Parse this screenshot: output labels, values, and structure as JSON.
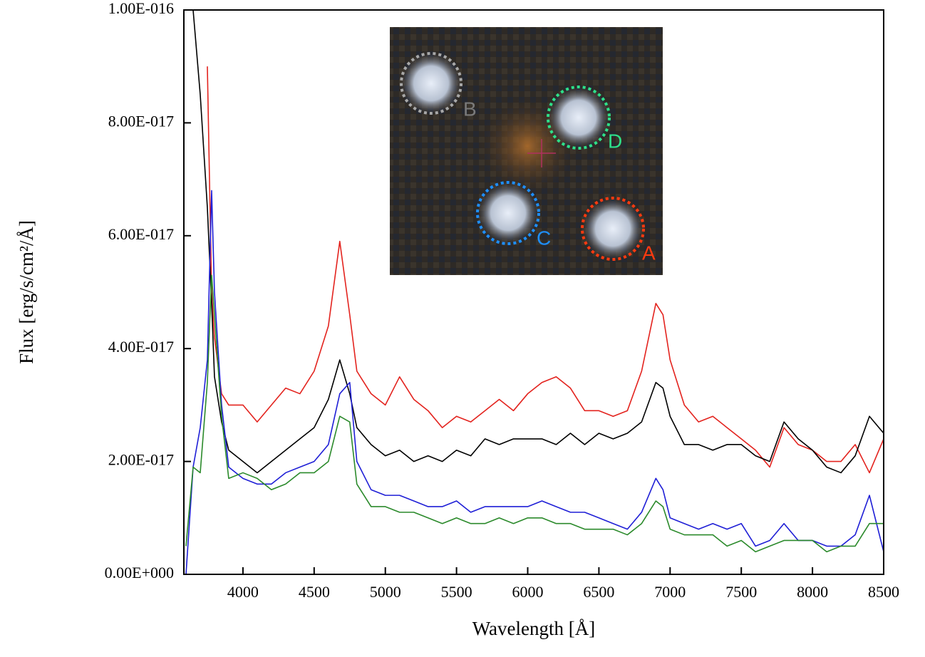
{
  "chart_data": {
    "type": "line",
    "xlabel": "Wavelength [Å]",
    "ylabel": "Flux [erg/s/cm²/Å]",
    "xlim": [
      3585,
      8500
    ],
    "ylim": [
      0,
      1e-16
    ],
    "xticks": [
      4000,
      4500,
      5000,
      5500,
      6000,
      6500,
      7000,
      7500,
      8000,
      8500
    ],
    "yticks": [
      {
        "value": 0,
        "label": "0.00E+000"
      },
      {
        "value": 2e-17,
        "label": "2.00E-017"
      },
      {
        "value": 4e-17,
        "label": "4.00E-017"
      },
      {
        "value": 6e-17,
        "label": "6.00E-017"
      },
      {
        "value": 8e-17,
        "label": "8.00E-017"
      },
      {
        "value": 1e-16,
        "label": "1.00E-016"
      }
    ],
    "x": [
      3600,
      3650,
      3700,
      3750,
      3780,
      3800,
      3850,
      3900,
      4000,
      4100,
      4200,
      4300,
      4400,
      4500,
      4600,
      4680,
      4750,
      4800,
      4900,
      5000,
      5100,
      5200,
      5300,
      5400,
      5500,
      5600,
      5700,
      5800,
      5900,
      6000,
      6100,
      6200,
      6300,
      6400,
      6500,
      6600,
      6700,
      6800,
      6900,
      6950,
      7000,
      7100,
      7200,
      7300,
      7400,
      7500,
      7600,
      7700,
      7800,
      7900,
      8000,
      8100,
      8200,
      8300,
      8400,
      8500
    ],
    "series": [
      {
        "name": "A",
        "color": "#e3231e",
        "values": [
          null,
          null,
          null,
          9e-17,
          5e-17,
          4.2e-17,
          3.2e-17,
          3e-17,
          3e-17,
          2.7e-17,
          3e-17,
          3.3e-17,
          3.2e-17,
          3.6e-17,
          4.4e-17,
          5.9e-17,
          4.6e-17,
          3.6e-17,
          3.2e-17,
          3e-17,
          3.5e-17,
          3.1e-17,
          2.9e-17,
          2.6e-17,
          2.8e-17,
          2.7e-17,
          2.9e-17,
          3.1e-17,
          2.9e-17,
          3.2e-17,
          3.4e-17,
          3.5e-17,
          3.3e-17,
          2.9e-17,
          2.9e-17,
          2.8e-17,
          2.9e-17,
          3.6e-17,
          4.8e-17,
          4.6e-17,
          3.8e-17,
          3e-17,
          2.7e-17,
          2.8e-17,
          2.6e-17,
          2.4e-17,
          2.2e-17,
          1.9e-17,
          2.6e-17,
          2.3e-17,
          2.2e-17,
          2e-17,
          2e-17,
          2.3e-17,
          1.8e-17,
          2.4e-17
        ]
      },
      {
        "name": "B",
        "color": "#000000",
        "values": [
          null,
          1e-16,
          8.5e-17,
          6.5e-17,
          4.8e-17,
          3.5e-17,
          2.7e-17,
          2.2e-17,
          2e-17,
          1.8e-17,
          2e-17,
          2.2e-17,
          2.4e-17,
          2.6e-17,
          3.1e-17,
          3.8e-17,
          3.2e-17,
          2.6e-17,
          2.3e-17,
          2.1e-17,
          2.2e-17,
          2e-17,
          2.1e-17,
          2e-17,
          2.2e-17,
          2.1e-17,
          2.4e-17,
          2.3e-17,
          2.4e-17,
          2.4e-17,
          2.4e-17,
          2.3e-17,
          2.5e-17,
          2.3e-17,
          2.5e-17,
          2.4e-17,
          2.5e-17,
          2.7e-17,
          3.4e-17,
          3.3e-17,
          2.8e-17,
          2.3e-17,
          2.3e-17,
          2.2e-17,
          2.3e-17,
          2.3e-17,
          2.1e-17,
          2e-17,
          2.7e-17,
          2.4e-17,
          2.2e-17,
          1.9e-17,
          1.8e-17,
          2.1e-17,
          2.8e-17,
          2.5e-17
        ]
      },
      {
        "name": "C",
        "color": "#1f1fd6",
        "values": [
          0,
          1.9e-17,
          2.6e-17,
          3.8e-17,
          6.8e-17,
          5e-17,
          3e-17,
          1.9e-17,
          1.7e-17,
          1.6e-17,
          1.6e-17,
          1.8e-17,
          1.9e-17,
          2e-17,
          2.3e-17,
          3.2e-17,
          3.4e-17,
          2e-17,
          1.5e-17,
          1.4e-17,
          1.4e-17,
          1.3e-17,
          1.2e-17,
          1.2e-17,
          1.3e-17,
          1.1e-17,
          1.2e-17,
          1.2e-17,
          1.2e-17,
          1.2e-17,
          1.3e-17,
          1.2e-17,
          1.1e-17,
          1.1e-17,
          1e-17,
          9e-18,
          8e-18,
          1.1e-17,
          1.7e-17,
          1.5e-17,
          1e-17,
          9e-18,
          8e-18,
          9e-18,
          8e-18,
          9e-18,
          5e-18,
          6e-18,
          9e-18,
          6e-18,
          6e-18,
          5e-18,
          5e-18,
          7e-18,
          1.4e-17,
          4e-18
        ]
      },
      {
        "name": "D",
        "color": "#2b8a2b",
        "values": [
          5e-18,
          1.9e-17,
          1.8e-17,
          3.4e-17,
          5.3e-17,
          4.6e-17,
          2.8e-17,
          1.7e-17,
          1.8e-17,
          1.7e-17,
          1.5e-17,
          1.6e-17,
          1.8e-17,
          1.8e-17,
          2e-17,
          2.8e-17,
          2.7e-17,
          1.6e-17,
          1.2e-17,
          1.2e-17,
          1.1e-17,
          1.1e-17,
          1e-17,
          9e-18,
          1e-17,
          9e-18,
          9e-18,
          1e-17,
          9e-18,
          1e-17,
          1e-17,
          9e-18,
          9e-18,
          8e-18,
          8e-18,
          8e-18,
          7e-18,
          9e-18,
          1.3e-17,
          1.2e-17,
          8e-18,
          7e-18,
          7e-18,
          7e-18,
          5e-18,
          6e-18,
          4e-18,
          5e-18,
          6e-18,
          6e-18,
          6e-18,
          4e-18,
          5e-18,
          5e-18,
          9e-18,
          9e-18
        ]
      }
    ]
  }
}
